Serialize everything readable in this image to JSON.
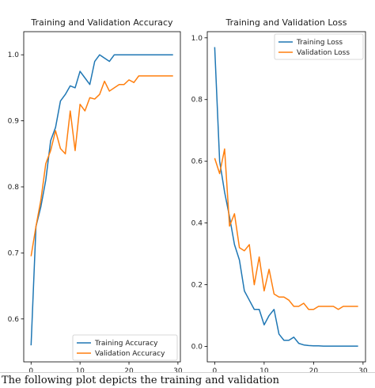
{
  "caption": "The following plot depicts the training and validation",
  "chart_data": [
    {
      "type": "line",
      "title": "Training and Validation Accuracy",
      "xlabel": "",
      "ylabel": "",
      "xlim": [
        -1.5,
        30.5
      ],
      "ylim": [
        0.535,
        1.035
      ],
      "xticks": [
        0,
        10,
        20,
        30
      ],
      "yticks": [
        0.6,
        0.7,
        0.8,
        0.9,
        1.0
      ],
      "ytick_labels": [
        "0.6",
        "0.7",
        "0.8",
        "0.9",
        "1.0"
      ],
      "legend_loc": "lower right",
      "grid": false,
      "series": [
        {
          "name": "Training Accuracy",
          "color": "#1f77b4",
          "x": [
            0,
            1,
            2,
            3,
            4,
            5,
            6,
            7,
            8,
            9,
            10,
            11,
            12,
            13,
            14,
            15,
            16,
            17,
            18,
            19,
            20,
            21,
            22,
            23,
            24,
            25,
            26,
            27,
            28,
            29
          ],
          "values": [
            0.56,
            0.74,
            0.77,
            0.81,
            0.87,
            0.89,
            0.93,
            0.94,
            0.953,
            0.95,
            0.975,
            0.965,
            0.955,
            0.99,
            1.0,
            0.995,
            0.99,
            1.0,
            1.0,
            1.0,
            1.0,
            1.0,
            1.0,
            1.0,
            1.0,
            1.0,
            1.0,
            1.0,
            1.0,
            1.0
          ]
        },
        {
          "name": "Validation Accuracy",
          "color": "#ff7f0e",
          "x": [
            0,
            1,
            2,
            3,
            4,
            5,
            6,
            7,
            8,
            9,
            10,
            11,
            12,
            13,
            14,
            15,
            16,
            17,
            18,
            19,
            20,
            21,
            22,
            23,
            24,
            25,
            26,
            27,
            28,
            29
          ],
          "values": [
            0.695,
            0.74,
            0.78,
            0.835,
            0.855,
            0.885,
            0.858,
            0.85,
            0.915,
            0.855,
            0.925,
            0.915,
            0.935,
            0.933,
            0.94,
            0.96,
            0.945,
            0.95,
            0.955,
            0.955,
            0.962,
            0.958,
            0.968,
            0.968,
            0.968,
            0.968,
            0.968,
            0.968,
            0.968,
            0.968
          ]
        }
      ]
    },
    {
      "type": "line",
      "title": "Training and Validation Loss",
      "xlabel": "",
      "ylabel": "",
      "xlim": [
        -1.5,
        30.5
      ],
      "ylim": [
        -0.05,
        1.02
      ],
      "xticks": [
        0,
        10,
        20,
        30
      ],
      "yticks": [
        0.0,
        0.2,
        0.4,
        0.6,
        0.8,
        1.0
      ],
      "ytick_labels": [
        "0.0",
        "0.2",
        "0.4",
        "0.6",
        "0.8",
        "1.0"
      ],
      "legend_loc": "upper right",
      "grid": false,
      "series": [
        {
          "name": "Training Loss",
          "color": "#1f77b4",
          "x": [
            0,
            1,
            2,
            3,
            4,
            5,
            6,
            7,
            8,
            9,
            10,
            11,
            12,
            13,
            14,
            15,
            16,
            17,
            18,
            19,
            20,
            21,
            22,
            23,
            24,
            25,
            26,
            27,
            28,
            29
          ],
          "values": [
            0.97,
            0.6,
            0.5,
            0.42,
            0.33,
            0.28,
            0.18,
            0.15,
            0.12,
            0.12,
            0.07,
            0.1,
            0.12,
            0.04,
            0.02,
            0.02,
            0.03,
            0.01,
            0.005,
            0.003,
            0.002,
            0.002,
            0.001,
            0.001,
            0.001,
            0.001,
            0.001,
            0.001,
            0.001,
            0.001
          ]
        },
        {
          "name": "Validation Loss",
          "color": "#ff7f0e",
          "x": [
            0,
            1,
            2,
            3,
            4,
            5,
            6,
            7,
            8,
            9,
            10,
            11,
            12,
            13,
            14,
            15,
            16,
            17,
            18,
            19,
            20,
            21,
            22,
            23,
            24,
            25,
            26,
            27,
            28,
            29
          ],
          "values": [
            0.61,
            0.56,
            0.64,
            0.39,
            0.43,
            0.32,
            0.31,
            0.33,
            0.2,
            0.29,
            0.18,
            0.25,
            0.17,
            0.16,
            0.16,
            0.15,
            0.13,
            0.13,
            0.14,
            0.12,
            0.12,
            0.13,
            0.13,
            0.13,
            0.13,
            0.12,
            0.13,
            0.13,
            0.13,
            0.13
          ]
        }
      ]
    }
  ]
}
